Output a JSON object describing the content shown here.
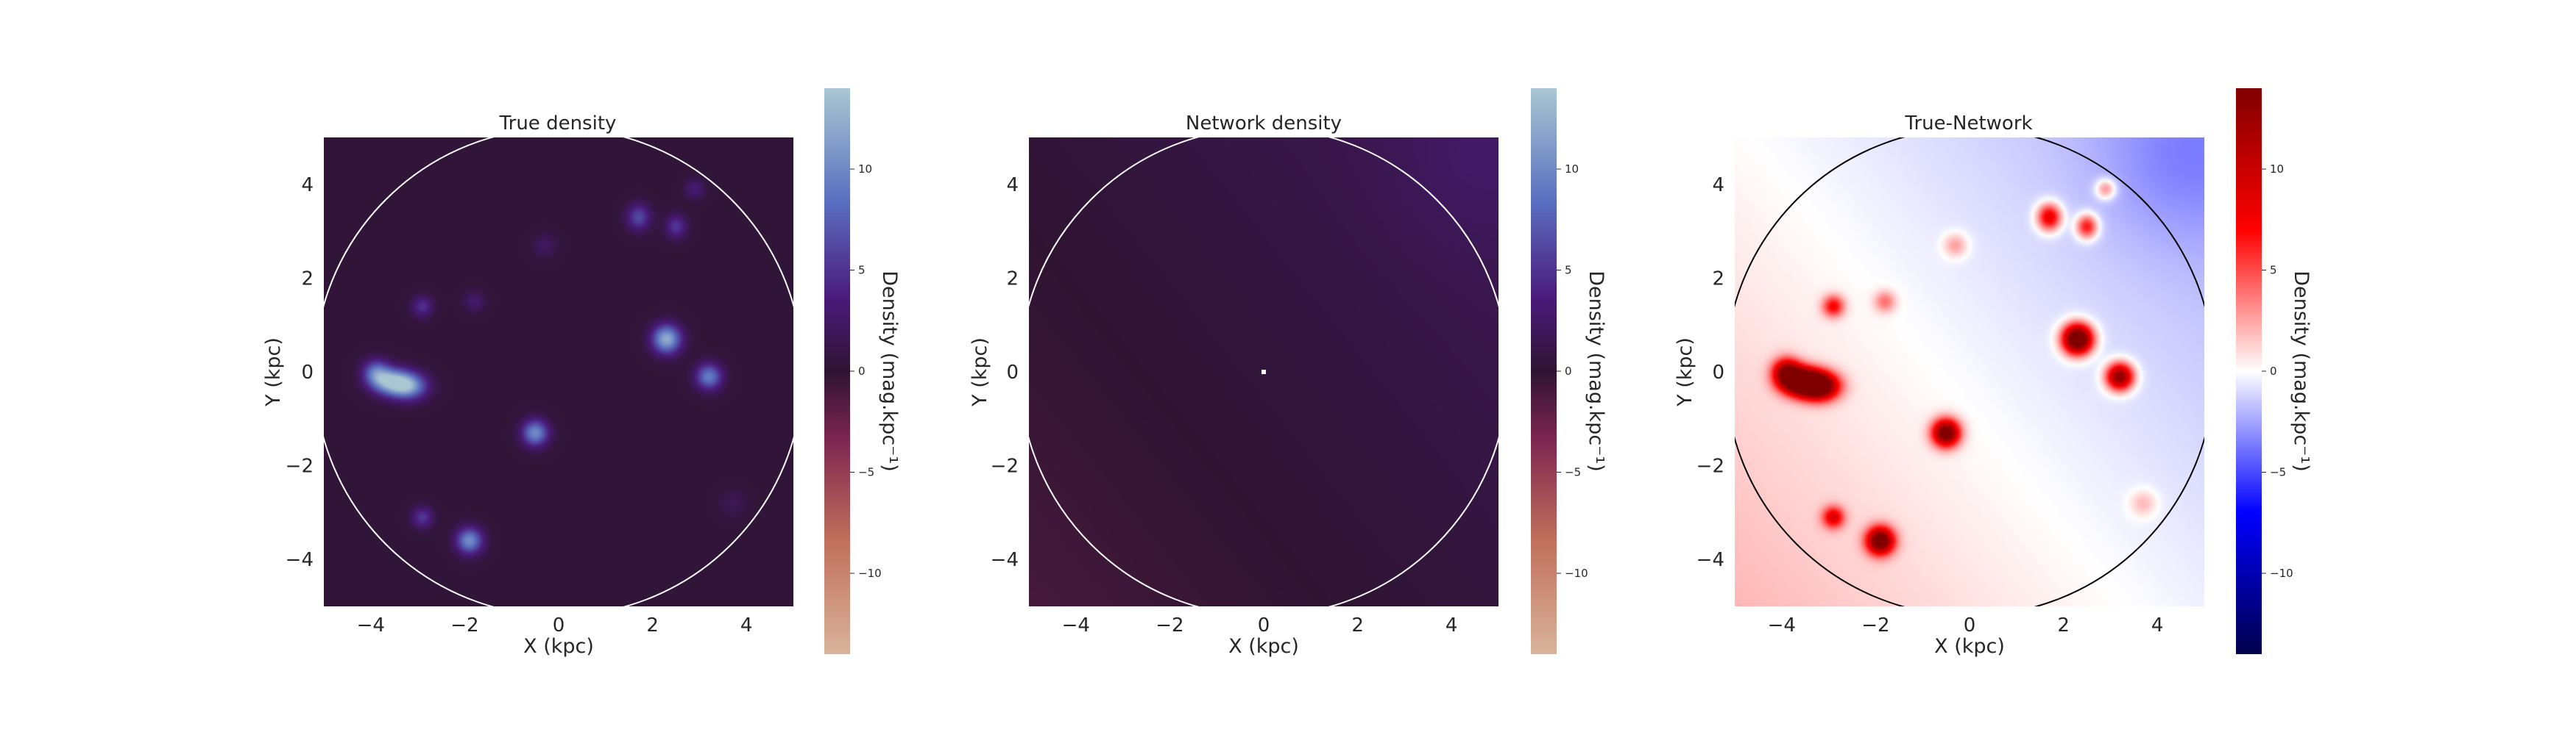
{
  "chart_data": [
    {
      "type": "heatmap",
      "title": "True density",
      "xlabel": "X (kpc)",
      "ylabel": "Y (kpc)",
      "xlim": [
        -5,
        5
      ],
      "ylim": [
        -5,
        5
      ],
      "xticks": [
        -4,
        -2,
        0,
        2,
        4
      ],
      "yticks": [
        -4,
        -2,
        0,
        2,
        4
      ],
      "colormap": "twilight_shifted",
      "colorbar": {
        "label": "Density (mag.kpc⁻¹)",
        "range": [
          -14,
          14
        ],
        "ticks": [
          -10,
          -5,
          0,
          5,
          10
        ]
      },
      "background_value": 0.3,
      "circle": {
        "center": [
          0,
          0
        ],
        "radius": 5.2,
        "color": "#ffffff"
      },
      "blobs": [
        {
          "x": -3.6,
          "y": -0.2,
          "sx": 0.28,
          "sy": 0.2,
          "amp": 11
        },
        {
          "x": -3.2,
          "y": -0.3,
          "sx": 0.28,
          "sy": 0.2,
          "amp": 11
        },
        {
          "x": -3.9,
          "y": 0.0,
          "sx": 0.2,
          "sy": 0.2,
          "amp": 7
        },
        {
          "x": 2.3,
          "y": 0.7,
          "sx": 0.22,
          "sy": 0.22,
          "amp": 12
        },
        {
          "x": 3.2,
          "y": -0.1,
          "sx": 0.2,
          "sy": 0.2,
          "amp": 9
        },
        {
          "x": -0.5,
          "y": -1.3,
          "sx": 0.2,
          "sy": 0.2,
          "amp": 10
        },
        {
          "x": -1.9,
          "y": -3.6,
          "sx": 0.2,
          "sy": 0.2,
          "amp": 10
        },
        {
          "x": -2.9,
          "y": -3.1,
          "sx": 0.16,
          "sy": 0.16,
          "amp": 5
        },
        {
          "x": 1.7,
          "y": 3.3,
          "sx": 0.18,
          "sy": 0.2,
          "amp": 6
        },
        {
          "x": 2.5,
          "y": 3.1,
          "sx": 0.16,
          "sy": 0.18,
          "amp": 5
        },
        {
          "x": 2.9,
          "y": 3.9,
          "sx": 0.15,
          "sy": 0.15,
          "amp": 3
        },
        {
          "x": -2.9,
          "y": 1.4,
          "sx": 0.16,
          "sy": 0.16,
          "amp": 4.5
        },
        {
          "x": -1.8,
          "y": 1.5,
          "sx": 0.16,
          "sy": 0.16,
          "amp": 2.5
        },
        {
          "x": -0.3,
          "y": 2.7,
          "sx": 0.18,
          "sy": 0.18,
          "amp": 2
        },
        {
          "x": 3.7,
          "y": -2.8,
          "sx": 0.2,
          "sy": 0.2,
          "amp": 1.5
        }
      ]
    },
    {
      "type": "heatmap",
      "title": "Network density",
      "xlabel": "X (kpc)",
      "ylabel": "Y (kpc)",
      "xlim": [
        -5,
        5
      ],
      "ylim": [
        -5,
        5
      ],
      "xticks": [
        -4,
        -2,
        0,
        2,
        4
      ],
      "yticks": [
        -4,
        -2,
        0,
        2,
        4
      ],
      "colormap": "twilight_shifted",
      "colorbar": {
        "label": "Density (mag.kpc⁻¹)",
        "range": [
          -14,
          14
        ],
        "ticks": [
          -10,
          -5,
          0,
          5,
          10
        ]
      },
      "background_value": 0.4,
      "gradient": {
        "dx": 0.15,
        "dy": 0.12,
        "corner_boost": 0.9
      },
      "sun_marker": [
        0,
        0
      ],
      "circle": {
        "center": [
          0,
          0
        ],
        "radius": 5.2,
        "color": "#ffffff"
      }
    },
    {
      "type": "heatmap",
      "title": "True-Network",
      "xlabel": "X (kpc)",
      "ylabel": "Y (kpc)",
      "xlim": [
        -5,
        5
      ],
      "ylim": [
        -5,
        5
      ],
      "xticks": [
        -4,
        -2,
        0,
        2,
        4
      ],
      "yticks": [
        -4,
        -2,
        0,
        2,
        4
      ],
      "colormap": "seismic",
      "colorbar": {
        "label": "Density (mag.kpc⁻¹)",
        "range": [
          -14,
          14
        ],
        "ticks": [
          -10,
          -5,
          0,
          5,
          10
        ]
      },
      "background": "difference of panel 1 and panel 2",
      "circle": {
        "center": [
          0,
          0
        ],
        "radius": 5.2,
        "color": "#000000"
      }
    }
  ]
}
